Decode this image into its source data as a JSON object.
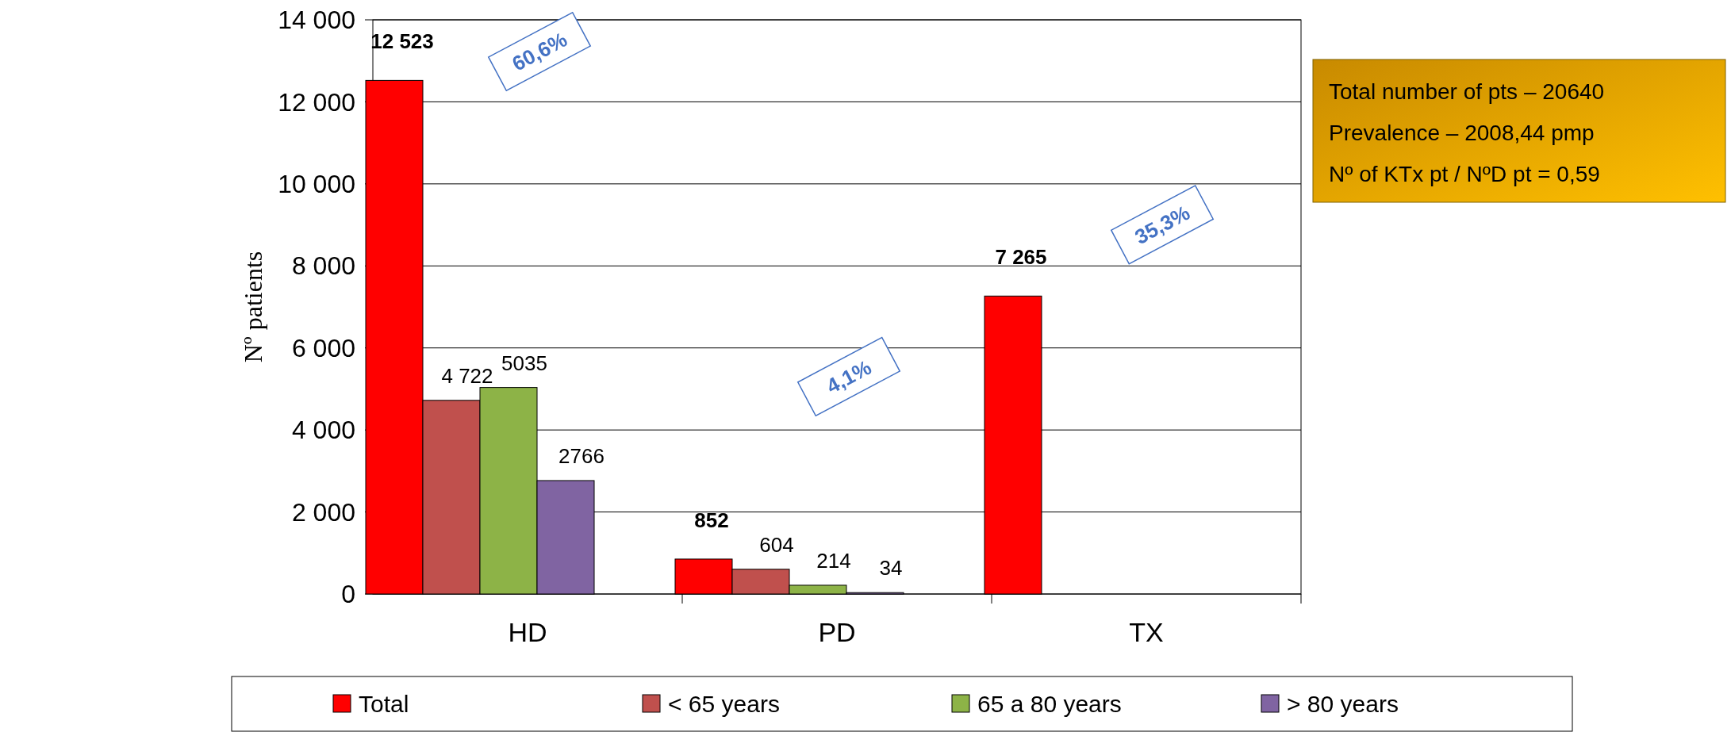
{
  "chart_data": {
    "type": "bar",
    "ylabel": "Nº patients",
    "categories": [
      "HD",
      "PD",
      "TX"
    ],
    "series": [
      {
        "name": "Total",
        "color": "#ff0000",
        "values": [
          12523,
          852,
          7265
        ],
        "value_labels": [
          "12 523",
          "852",
          "7 265"
        ]
      },
      {
        "name": "< 65 years",
        "color": "#c0504d",
        "values": [
          4722,
          604,
          null
        ],
        "value_labels": [
          "4 722",
          "604",
          null
        ]
      },
      {
        "name": "65 a 80 years",
        "color": "#8db347",
        "values": [
          5035,
          214,
          null
        ],
        "value_labels": [
          "5035",
          "214",
          null
        ]
      },
      {
        "name": "> 80 years",
        "color": "#8064a2",
        "values": [
          2766,
          34,
          null
        ],
        "value_labels": [
          "2766",
          "34",
          null
        ]
      }
    ],
    "ylim": [
      0,
      14000
    ],
    "yticks": [
      {
        "value": 0,
        "label": "0"
      },
      {
        "value": 2000,
        "label": "2 000"
      },
      {
        "value": 4000,
        "label": "4 000"
      },
      {
        "value": 6000,
        "label": "6 000"
      },
      {
        "value": 8000,
        "label": "8 000"
      },
      {
        "value": 10000,
        "label": "10 000"
      },
      {
        "value": 12000,
        "label": "12 000"
      },
      {
        "value": 14000,
        "label": "14 000"
      }
    ],
    "grid": "y",
    "legend": "bottom",
    "annotations": [
      "60,6%",
      "4,1%",
      "35,3%",
      "Total number of pts – 20640",
      "Prevalence – 2008,44 pmp",
      "Nº of KTx pt / NºD pt = 0,59"
    ]
  }
}
